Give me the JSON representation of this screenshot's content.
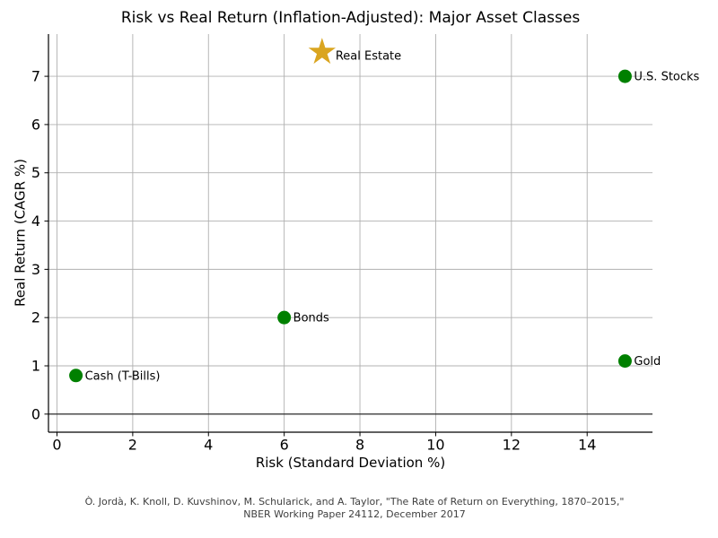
{
  "chart_data": {
    "type": "scatter",
    "title": "Risk vs Real Return (Inflation-Adjusted): Major Asset Classes",
    "xlabel": "Risk (Standard Deviation %)",
    "ylabel": "Real Return (CAGR %)",
    "xlim": [
      -0.225,
      15.725
    ],
    "ylim": [
      -0.375,
      7.875
    ],
    "xticks": [
      0,
      2,
      4,
      6,
      8,
      10,
      12,
      14
    ],
    "yticks": [
      0,
      1,
      2,
      3,
      4,
      5,
      6,
      7
    ],
    "grid": true,
    "legend": "none",
    "zero_line_y": 0,
    "points": [
      {
        "label": "Cash (T-Bills)",
        "x": 0.5,
        "y": 0.8,
        "marker": "circle",
        "color": "#008000"
      },
      {
        "label": "Bonds",
        "x": 6.0,
        "y": 2.0,
        "marker": "circle",
        "color": "#008000"
      },
      {
        "label": "Gold",
        "x": 15.0,
        "y": 1.1,
        "marker": "circle",
        "color": "#008000"
      },
      {
        "label": "U.S. Stocks",
        "x": 15.0,
        "y": 7.0,
        "marker": "circle",
        "color": "#008000"
      },
      {
        "label": "Real Estate",
        "x": 7.0,
        "y": 7.5,
        "marker": "star",
        "color": "#DAA520"
      }
    ],
    "footnote_lines": [
      "Ò. Jordà, K. Knoll, D. Kuvshinov, M. Schularick, and A. Taylor, \"The Rate of Return on Everything, 1870–2015,\"",
      "NBER Working Paper 24112, December 2017"
    ],
    "colors": {
      "point_green": "#008000",
      "star_gold": "#DAA520",
      "grid": "#b0b0b0",
      "axis": "#000000",
      "zero_line": "#1a1a1a",
      "text": "#000000",
      "footnote": "#404040",
      "background": "#ffffff"
    }
  }
}
